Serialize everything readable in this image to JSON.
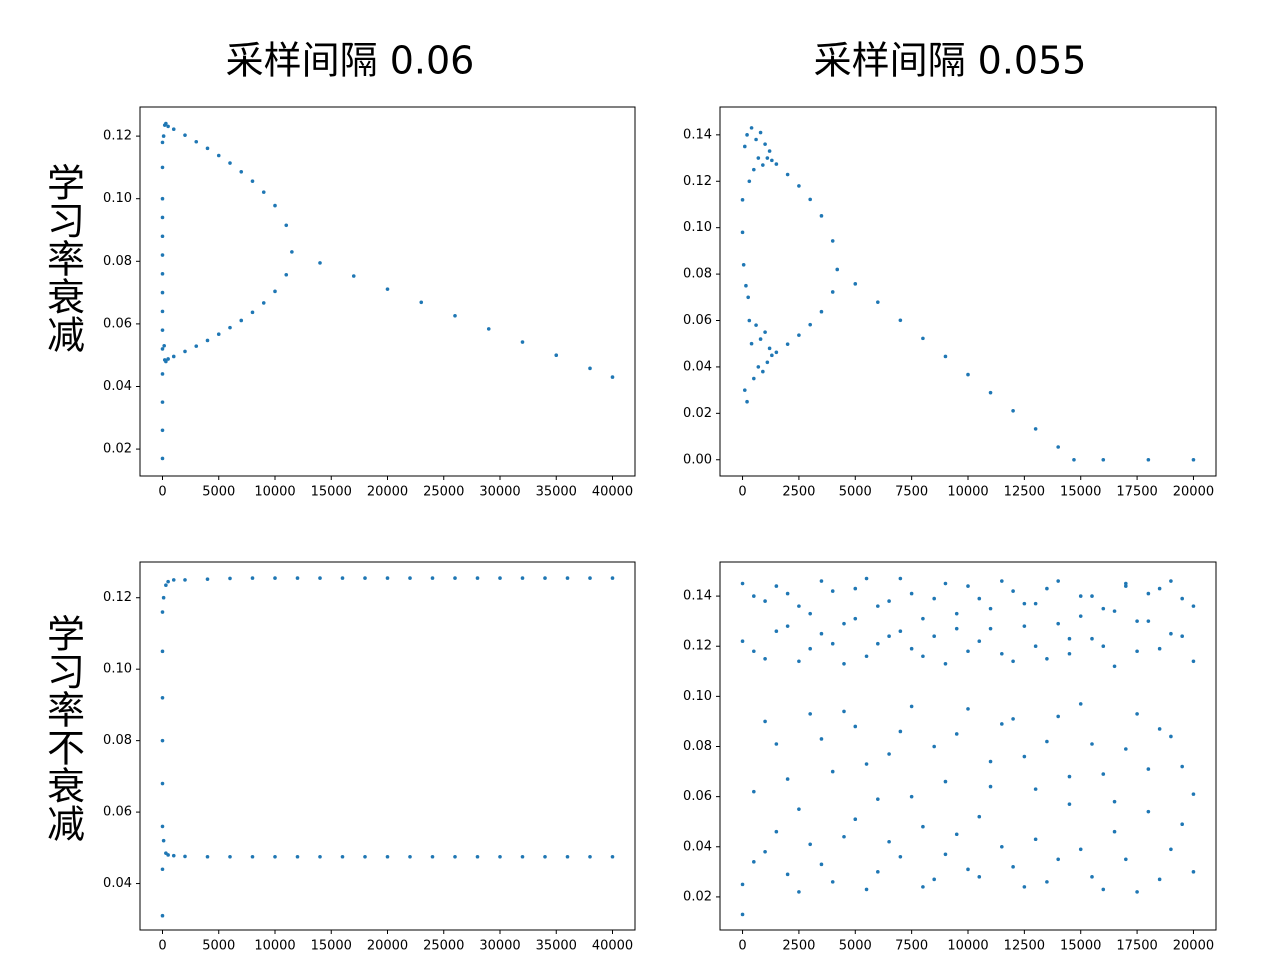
{
  "column_titles": [
    "采样间隔 0.06",
    "采样间隔 0.055"
  ],
  "row_labels": [
    "学习率衰减",
    "学习率不衰减"
  ],
  "chart_data": [
    {
      "type": "scatter",
      "color": "#1f77b4",
      "xlim": [
        -2000,
        42000
      ],
      "ylim": [
        0.0114,
        0.1293
      ],
      "xticks": [
        0,
        5000,
        10000,
        15000,
        20000,
        25000,
        30000,
        35000,
        40000
      ],
      "yticks": [
        0.02,
        0.04,
        0.06,
        0.08,
        {
          "value": 0.1,
          "label": "0.10"
        },
        0.12
      ],
      "x": [
        0,
        0,
        0,
        0,
        0,
        0,
        0,
        0,
        0,
        0,
        0,
        0,
        0,
        0,
        0,
        100,
        150,
        200,
        200,
        300,
        300,
        500,
        500,
        1000,
        1000,
        2000,
        2000,
        3000,
        3000,
        4000,
        4000,
        5000,
        5000,
        6000,
        6000,
        7000,
        7000,
        8000,
        8000,
        9000,
        9000,
        10000,
        10000,
        11000,
        11000,
        11500,
        14000,
        17000,
        20000,
        23000,
        26000,
        29000,
        32000,
        35000,
        38000,
        40000
      ],
      "values": [
        0.017,
        0.026,
        0.035,
        0.044,
        0.052,
        0.058,
        0.064,
        0.07,
        0.076,
        0.082,
        0.088,
        0.094,
        0.1,
        0.11,
        0.118,
        0.12,
        0.053,
        0.1235,
        0.0485,
        0.124,
        0.048,
        0.1231,
        0.0488,
        0.1222,
        0.0496,
        0.1203,
        0.0512,
        0.1182,
        0.0529,
        0.1161,
        0.0547,
        0.1138,
        0.0567,
        0.1114,
        0.0588,
        0.1086,
        0.0611,
        0.1056,
        0.0637,
        0.1021,
        0.0667,
        0.0978,
        0.0704,
        0.0915,
        0.0757,
        0.083,
        0.0795,
        0.0753,
        0.0711,
        0.0669,
        0.0626,
        0.0584,
        0.0542,
        0.05,
        0.0458,
        0.043
      ]
    },
    {
      "type": "scatter",
      "color": "#1f77b4",
      "xlim": [
        -1000,
        21000
      ],
      "ylim": [
        -0.007,
        0.152
      ],
      "xticks": [
        0,
        2500,
        5000,
        7500,
        10000,
        12500,
        15000,
        17500,
        20000
      ],
      "yticks": [
        {
          "value": 0,
          "label": "0.00"
        },
        0.02,
        0.04,
        0.06,
        0.08,
        {
          "value": 0.1,
          "label": "0.10"
        },
        0.12,
        0.14
      ],
      "x": [
        0,
        0,
        50,
        100,
        100,
        150,
        200,
        200,
        250,
        300,
        300,
        400,
        400,
        500,
        500,
        600,
        600,
        700,
        700,
        800,
        800,
        900,
        900,
        1000,
        1000,
        1100,
        1100,
        1200,
        1200,
        1300,
        1300,
        1500,
        1500,
        2000,
        2000,
        2500,
        2500,
        3000,
        3000,
        3500,
        3500,
        4000,
        4000,
        4200,
        5000,
        6000,
        7000,
        8000,
        9000,
        10000,
        11000,
        12000,
        13000,
        14000,
        14700,
        16000,
        18000,
        20000
      ],
      "values": [
        0.098,
        0.112,
        0.084,
        0.135,
        0.03,
        0.075,
        0.14,
        0.025,
        0.07,
        0.12,
        0.06,
        0.143,
        0.05,
        0.125,
        0.035,
        0.138,
        0.058,
        0.13,
        0.04,
        0.141,
        0.052,
        0.127,
        0.038,
        0.136,
        0.055,
        0.13,
        0.042,
        0.133,
        0.048,
        0.129,
        0.045,
        0.1274,
        0.0463,
        0.1229,
        0.0498,
        0.118,
        0.0537,
        0.1122,
        0.0582,
        0.1051,
        0.0638,
        0.0943,
        0.0723,
        0.082,
        0.0758,
        0.0679,
        0.0601,
        0.0523,
        0.0445,
        0.0367,
        0.0289,
        0.0211,
        0.0133,
        0.0055,
        0,
        0,
        0,
        0
      ]
    },
    {
      "type": "scatter",
      "color": "#1f77b4",
      "xlim": [
        -2000,
        42000
      ],
      "ylim": [
        0.027,
        0.13
      ],
      "xticks": [
        0,
        5000,
        10000,
        15000,
        20000,
        25000,
        30000,
        35000,
        40000
      ],
      "yticks": [
        0.04,
        0.06,
        0.08,
        {
          "value": 0.1,
          "label": "0.10"
        },
        0.12
      ],
      "x": [
        0,
        0,
        0,
        0,
        0,
        0,
        0,
        0,
        100,
        100,
        300,
        300,
        500,
        500,
        1000,
        1000,
        2000,
        2000,
        4000,
        4000,
        6000,
        6000,
        8000,
        8000,
        10000,
        10000,
        12000,
        12000,
        14000,
        14000,
        16000,
        16000,
        18000,
        18000,
        20000,
        20000,
        22000,
        22000,
        24000,
        24000,
        26000,
        26000,
        28000,
        28000,
        30000,
        30000,
        32000,
        32000,
        34000,
        34000,
        36000,
        36000,
        38000,
        38000,
        40000,
        40000
      ],
      "values": [
        0.031,
        0.044,
        0.056,
        0.068,
        0.08,
        0.092,
        0.105,
        0.116,
        0.12,
        0.052,
        0.1235,
        0.0485,
        0.1245,
        0.048,
        0.125,
        0.0478,
        0.125,
        0.0476,
        0.1252,
        0.0475,
        0.1254,
        0.0475,
        0.1255,
        0.0475,
        0.1255,
        0.0475,
        0.1255,
        0.0475,
        0.1255,
        0.0475,
        0.1255,
        0.0475,
        0.1255,
        0.0475,
        0.1255,
        0.0475,
        0.1255,
        0.0475,
        0.1255,
        0.0475,
        0.1255,
        0.0475,
        0.1255,
        0.0475,
        0.1255,
        0.0475,
        0.1255,
        0.0475,
        0.1255,
        0.0475,
        0.1255,
        0.0475,
        0.1255,
        0.0475,
        0.1255,
        0.0475
      ]
    },
    {
      "type": "scatter",
      "xlim": [
        -1000,
        21000
      ],
      "ylim": [
        0.0068,
        0.1536
      ],
      "xticks": [
        0,
        2500,
        5000,
        7500,
        10000,
        12500,
        15000,
        17500,
        20000
      ],
      "yticks": [
        0.02,
        0.04,
        0.06,
        0.08,
        {
          "value": 0.1,
          "label": "0.10"
        },
        0.12,
        0.14
      ],
      "x": [
        0,
        500,
        1000,
        1500,
        2000,
        2500,
        3000,
        3500,
        4000,
        4500,
        5000,
        5500,
        6000,
        6500,
        7000,
        7500,
        8000,
        8500,
        9000,
        9500,
        10000,
        10500,
        11000,
        11500,
        12000,
        12500,
        13000,
        13500,
        14000,
        14500,
        15000,
        15500,
        16000,
        16500,
        17000,
        17500,
        18000,
        18500,
        19000,
        19500,
        20000
      ],
      "series": [
        {
          "color": "#1f77b4",
          "values": [
            0.145,
            0.118,
            0.138,
            0.126,
            0.141,
            0.114,
            0.133,
            0.146,
            0.121,
            0.129,
            0.143,
            0.116,
            0.136,
            0.124,
            0.147,
            0.119,
            0.131,
            0.139,
            0.113,
            0.127,
            0.144,
            0.122,
            0.135,
            0.117,
            0.142,
            0.128,
            0.137,
            0.115,
            0.146,
            0.123,
            0.132,
            0.14,
            0.12,
            0.134,
            0.145,
            0.118,
            0.13,
            0.143,
            0.125,
            0.139,
            0.114
          ]
        },
        {
          "color": "#1f77b4",
          "values": [
            0.122,
            0.14,
            0.115,
            0.144,
            0.128,
            0.136,
            0.119,
            0.125,
            0.142,
            0.113,
            0.131,
            0.147,
            0.121,
            0.138,
            0.126,
            0.141,
            0.116,
            0.124,
            0.145,
            0.133,
            0.118,
            0.139,
            0.127,
            0.146,
            0.114,
            0.137,
            0.12,
            0.143,
            0.129,
            0.117,
            0.14,
            0.123,
            0.135,
            0.112,
            0.144,
            0.13,
            0.141,
            0.119,
            0.146,
            0.124,
            0.136
          ]
        },
        {
          "color": "#1f77b4",
          "values": [
            0.025,
            0.062,
            0.038,
            0.081,
            0.029,
            0.055,
            0.093,
            0.033,
            0.07,
            0.044,
            0.088,
            0.023,
            0.059,
            0.077,
            0.036,
            0.096,
            0.048,
            0.027,
            0.066,
            0.085,
            0.031,
            0.052,
            0.074,
            0.04,
            0.091,
            0.024,
            0.063,
            0.082,
            0.035,
            0.057,
            0.097,
            0.028,
            0.069,
            0.046,
            0.079,
            0.022,
            0.054,
            0.087,
            0.039,
            0.072,
            0.03
          ]
        },
        {
          "color": "#1f77b4",
          "values": [
            0.013,
            0.034,
            0.09,
            0.046,
            0.067,
            0.022,
            0.041,
            0.083,
            0.026,
            0.094,
            0.051,
            0.073,
            0.03,
            0.042,
            0.086,
            0.06,
            0.024,
            0.08,
            0.037,
            0.045,
            0.095,
            0.028,
            0.064,
            0.089,
            0.032,
            0.076,
            0.043,
            0.026,
            0.092,
            0.068,
            0.039,
            0.081,
            0.023,
            0.058,
            0.035,
            0.093,
            0.071,
            0.027,
            0.084,
            0.049,
            0.061
          ]
        }
      ]
    }
  ]
}
